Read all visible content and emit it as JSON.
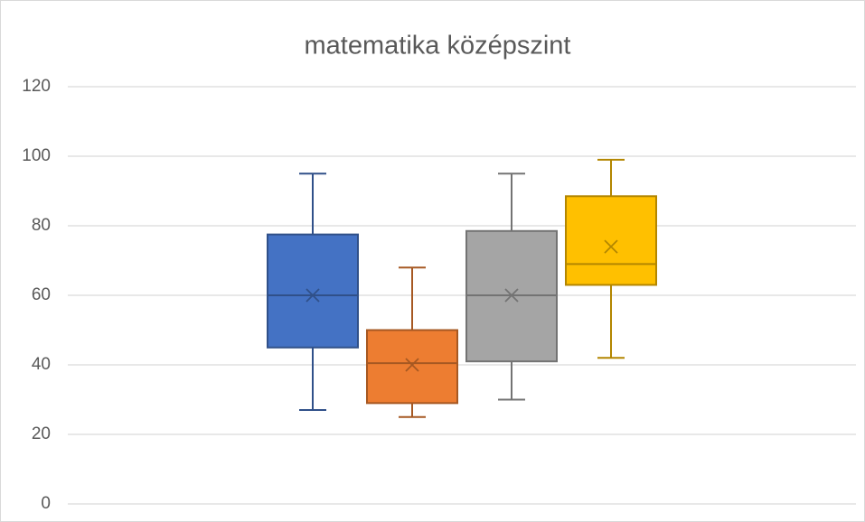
{
  "chart_data": {
    "type": "box",
    "title": "matematika középszint",
    "ylim": [
      0,
      120
    ],
    "yticks": [
      0,
      20,
      40,
      60,
      80,
      100,
      120
    ],
    "grid": true,
    "series": [
      {
        "color": "#4472c4",
        "min": 27,
        "q1": 45,
        "median": 60,
        "q3": 77.5,
        "max": 95,
        "mean": 60
      },
      {
        "color": "#ed7d31",
        "min": 25,
        "q1": 29,
        "median": 40.5,
        "q3": 50,
        "max": 68,
        "mean": 40
      },
      {
        "color": "#a5a5a5",
        "min": 30,
        "q1": 41,
        "median": 60,
        "q3": 78.5,
        "max": 95,
        "mean": 60
      },
      {
        "color": "#ffc000",
        "min": 42,
        "q1": 63,
        "median": 69,
        "q3": 88.5,
        "max": 99,
        "mean": 74
      }
    ]
  }
}
